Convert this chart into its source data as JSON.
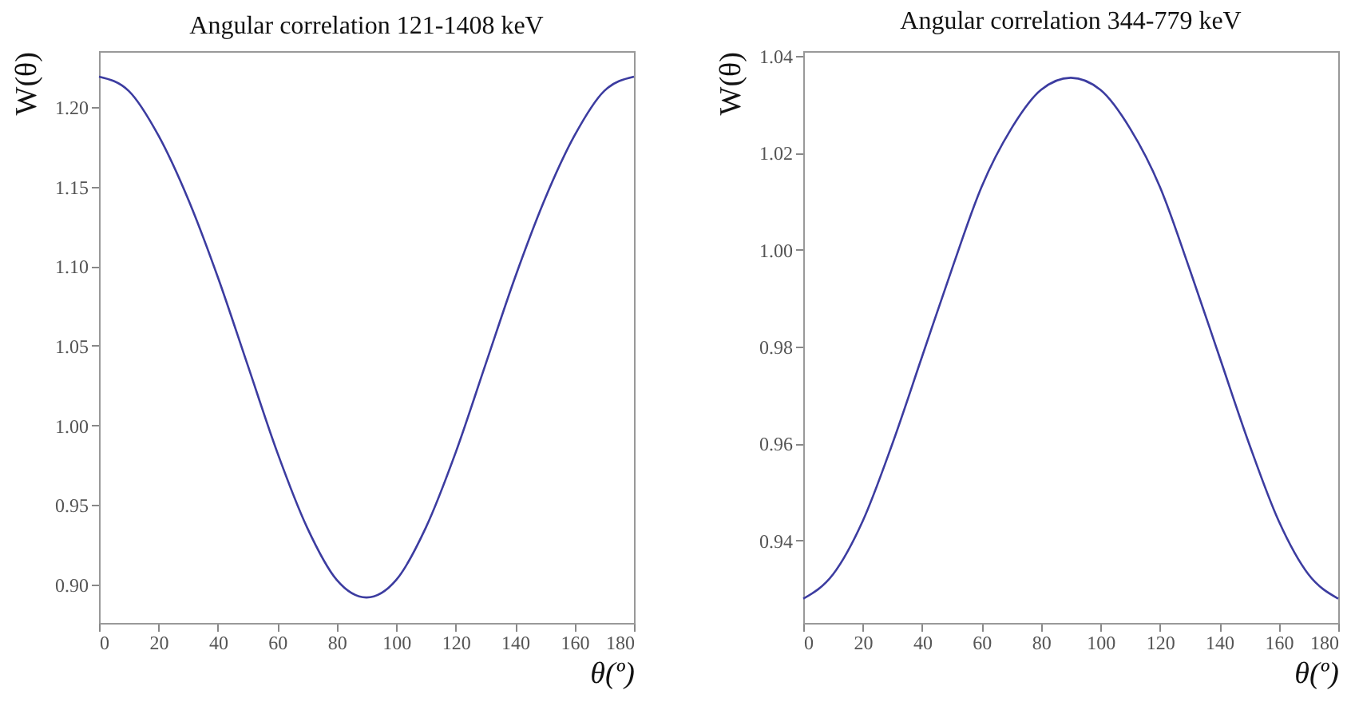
{
  "chart_data": [
    {
      "type": "line",
      "title": "Angular correlation 121-1408 keV",
      "xlabel": "θ(º)",
      "ylabel": "W(θ)",
      "x": [
        0,
        10,
        20,
        30,
        40,
        50,
        60,
        70,
        80,
        90,
        100,
        110,
        120,
        130,
        140,
        150,
        160,
        170,
        180
      ],
      "series": [
        {
          "color": "#3c3ca0",
          "values": [
            1.219,
            1.21,
            1.182,
            1.142,
            1.093,
            1.038,
            0.983,
            0.936,
            0.903,
            0.892,
            0.903,
            0.936,
            0.983,
            1.038,
            1.093,
            1.142,
            1.182,
            1.21,
            1.219
          ]
        }
      ],
      "xlim": [
        0,
        180
      ],
      "xticks": [
        0,
        20,
        40,
        60,
        80,
        100,
        120,
        140,
        160,
        180
      ],
      "ylim": [
        0.876,
        1.235
      ],
      "yticks": [
        {
          "value": 0.9,
          "label": "0.90"
        },
        0.95,
        {
          "value": 1.0,
          "label": "1.00"
        },
        1.05,
        {
          "value": 1.1,
          "label": "1.10"
        },
        1.15,
        {
          "value": 1.2,
          "label": "1.20"
        }
      ],
      "grid": false
    },
    {
      "type": "line",
      "title": "Angular correlation 344-779 keV",
      "xlabel": "θ(º)",
      "ylabel": "W(θ)",
      "x": [
        0,
        10,
        20,
        30,
        40,
        50,
        60,
        70,
        80,
        90,
        100,
        110,
        120,
        130,
        140,
        150,
        160,
        170,
        180
      ],
      "series": [
        {
          "color": "#3c3ca0",
          "values": [
            0.928,
            0.933,
            0.944,
            0.96,
            0.978,
            0.996,
            1.013,
            1.025,
            1.033,
            1.0355,
            1.033,
            1.025,
            1.013,
            0.996,
            0.978,
            0.96,
            0.944,
            0.933,
            0.928
          ]
        }
      ],
      "xlim": [
        0,
        180
      ],
      "xticks": [
        0,
        20,
        40,
        60,
        80,
        100,
        120,
        140,
        160,
        180
      ],
      "ylim": [
        0.923,
        1.041
      ],
      "yticks": [
        0.94,
        0.96,
        0.98,
        {
          "value": 1.0,
          "label": "1.00"
        },
        1.02,
        1.04
      ],
      "grid": false
    }
  ]
}
